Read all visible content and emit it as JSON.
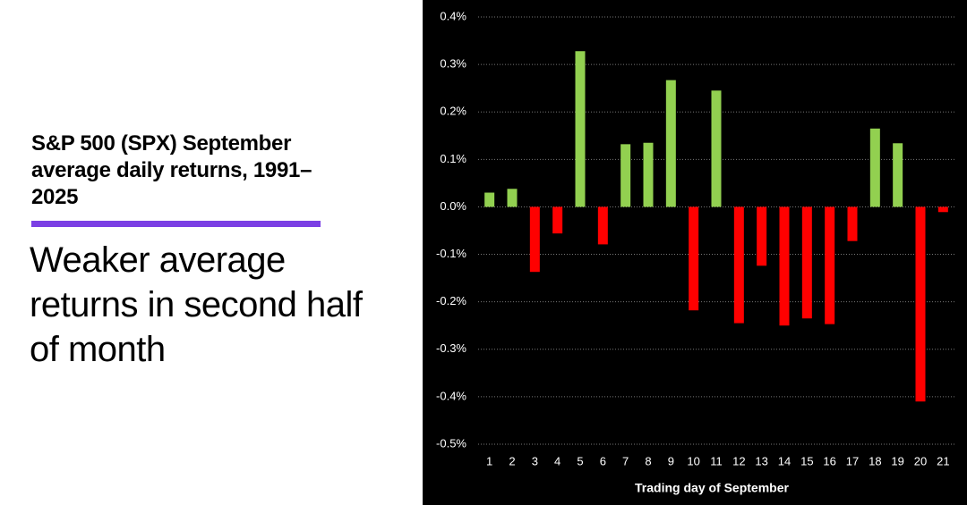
{
  "chart_data": {
    "type": "bar",
    "title": "S&P 500 (SPX) September average daily returns, 1991–2025",
    "subtitle": "Weaker average returns in second half of month",
    "x_label": "Trading day of September",
    "categories": [
      "1",
      "2",
      "3",
      "4",
      "5",
      "6",
      "7",
      "8",
      "9",
      "10",
      "11",
      "12",
      "13",
      "14",
      "15",
      "16",
      "17",
      "18",
      "19",
      "20",
      "21"
    ],
    "values": [
      0.03,
      0.038,
      -0.137,
      -0.056,
      0.328,
      -0.079,
      0.132,
      0.135,
      0.267,
      -0.218,
      0.245,
      -0.245,
      -0.124,
      -0.25,
      -0.235,
      -0.247,
      -0.072,
      0.165,
      0.134,
      -0.41,
      -0.011
    ],
    "positive_color": "#92d050",
    "negative_color": "#ff0000",
    "ylim": [
      -0.5,
      0.4
    ],
    "yticks": [
      {
        "value": -0.5,
        "label": "-0.5%"
      },
      {
        "value": -0.4,
        "label": "-0.4%"
      },
      {
        "value": -0.3,
        "label": "-0.3%"
      },
      {
        "value": -0.2,
        "label": "-0.2%"
      },
      {
        "value": -0.1,
        "label": "-0.1%"
      },
      {
        "value": 0,
        "label": "0.0%"
      },
      {
        "value": 0.1,
        "label": "0.1%"
      },
      {
        "value": 0.2,
        "label": "0.2%"
      },
      {
        "value": 0.3,
        "label": "0.3%"
      },
      {
        "value": 0.4,
        "label": "0.4%"
      }
    ],
    "grid": true
  }
}
